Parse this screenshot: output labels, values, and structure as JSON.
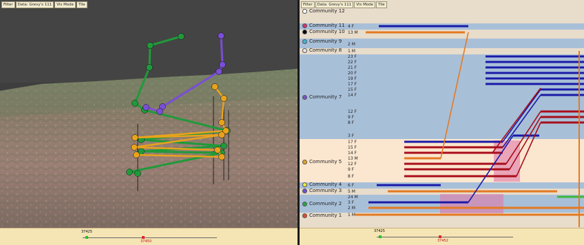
{
  "toolbar": {
    "filter_label": "Filter",
    "data_label": "Data: Grevy's 111",
    "vis_mode_label": "Vis Mode",
    "tile_label": "Tile"
  },
  "left_timeline": {
    "start_label": "37425",
    "current_label": "37450"
  },
  "right_timeline": {
    "start_label": "37425",
    "current_label": "37452"
  },
  "communities": [
    {
      "label": "Community 12",
      "color": "#ffffff",
      "members": []
    },
    {
      "label": "Community 11",
      "color": "#d6336c",
      "members": [
        "4 F"
      ]
    },
    {
      "label": "Community 10",
      "color": "#000000",
      "members": [
        "13 M"
      ]
    },
    {
      "label": "Community 9",
      "color": "#3fb6d8",
      "members": [
        "2 M"
      ]
    },
    {
      "label": "Community 8",
      "color": "#e8e8e8",
      "members": [
        "1 M"
      ]
    },
    {
      "label": "Community 7",
      "color": "#7b52c8",
      "members": [
        "23 F",
        "22 F",
        "21 F",
        "20 F",
        "19 F",
        "17 F",
        "15 F",
        "14 F",
        "12 F",
        "9 F",
        "8 F",
        "3 F"
      ]
    },
    {
      "label": "Community 5",
      "color": "#e3a526",
      "members": [
        "17 F",
        "15 F",
        "14 F",
        "13 M",
        "12 F",
        "9 F",
        "8 F"
      ]
    },
    {
      "label": "Community 4",
      "color": "#f0ee3a",
      "members": [
        "6 F"
      ]
    },
    {
      "label": "Community 3",
      "color": "#6a4fd6",
      "members": [
        "5 M"
      ]
    },
    {
      "label": "Community 2",
      "color": "#27a844",
      "members": [
        "24 M",
        "3 F",
        "2 M"
      ]
    },
    {
      "label": "Community 1",
      "color": "#e04e2e",
      "members": [
        "1 M"
      ]
    }
  ],
  "colors": {
    "green": "#1f9a3a",
    "purple": "#7a4ed6",
    "orange": "#e9a21c",
    "blue_track": "#1a1aa8",
    "red_track": "#a80d1a",
    "orange_track": "#e47a22",
    "highlight": "#e07aa8"
  }
}
